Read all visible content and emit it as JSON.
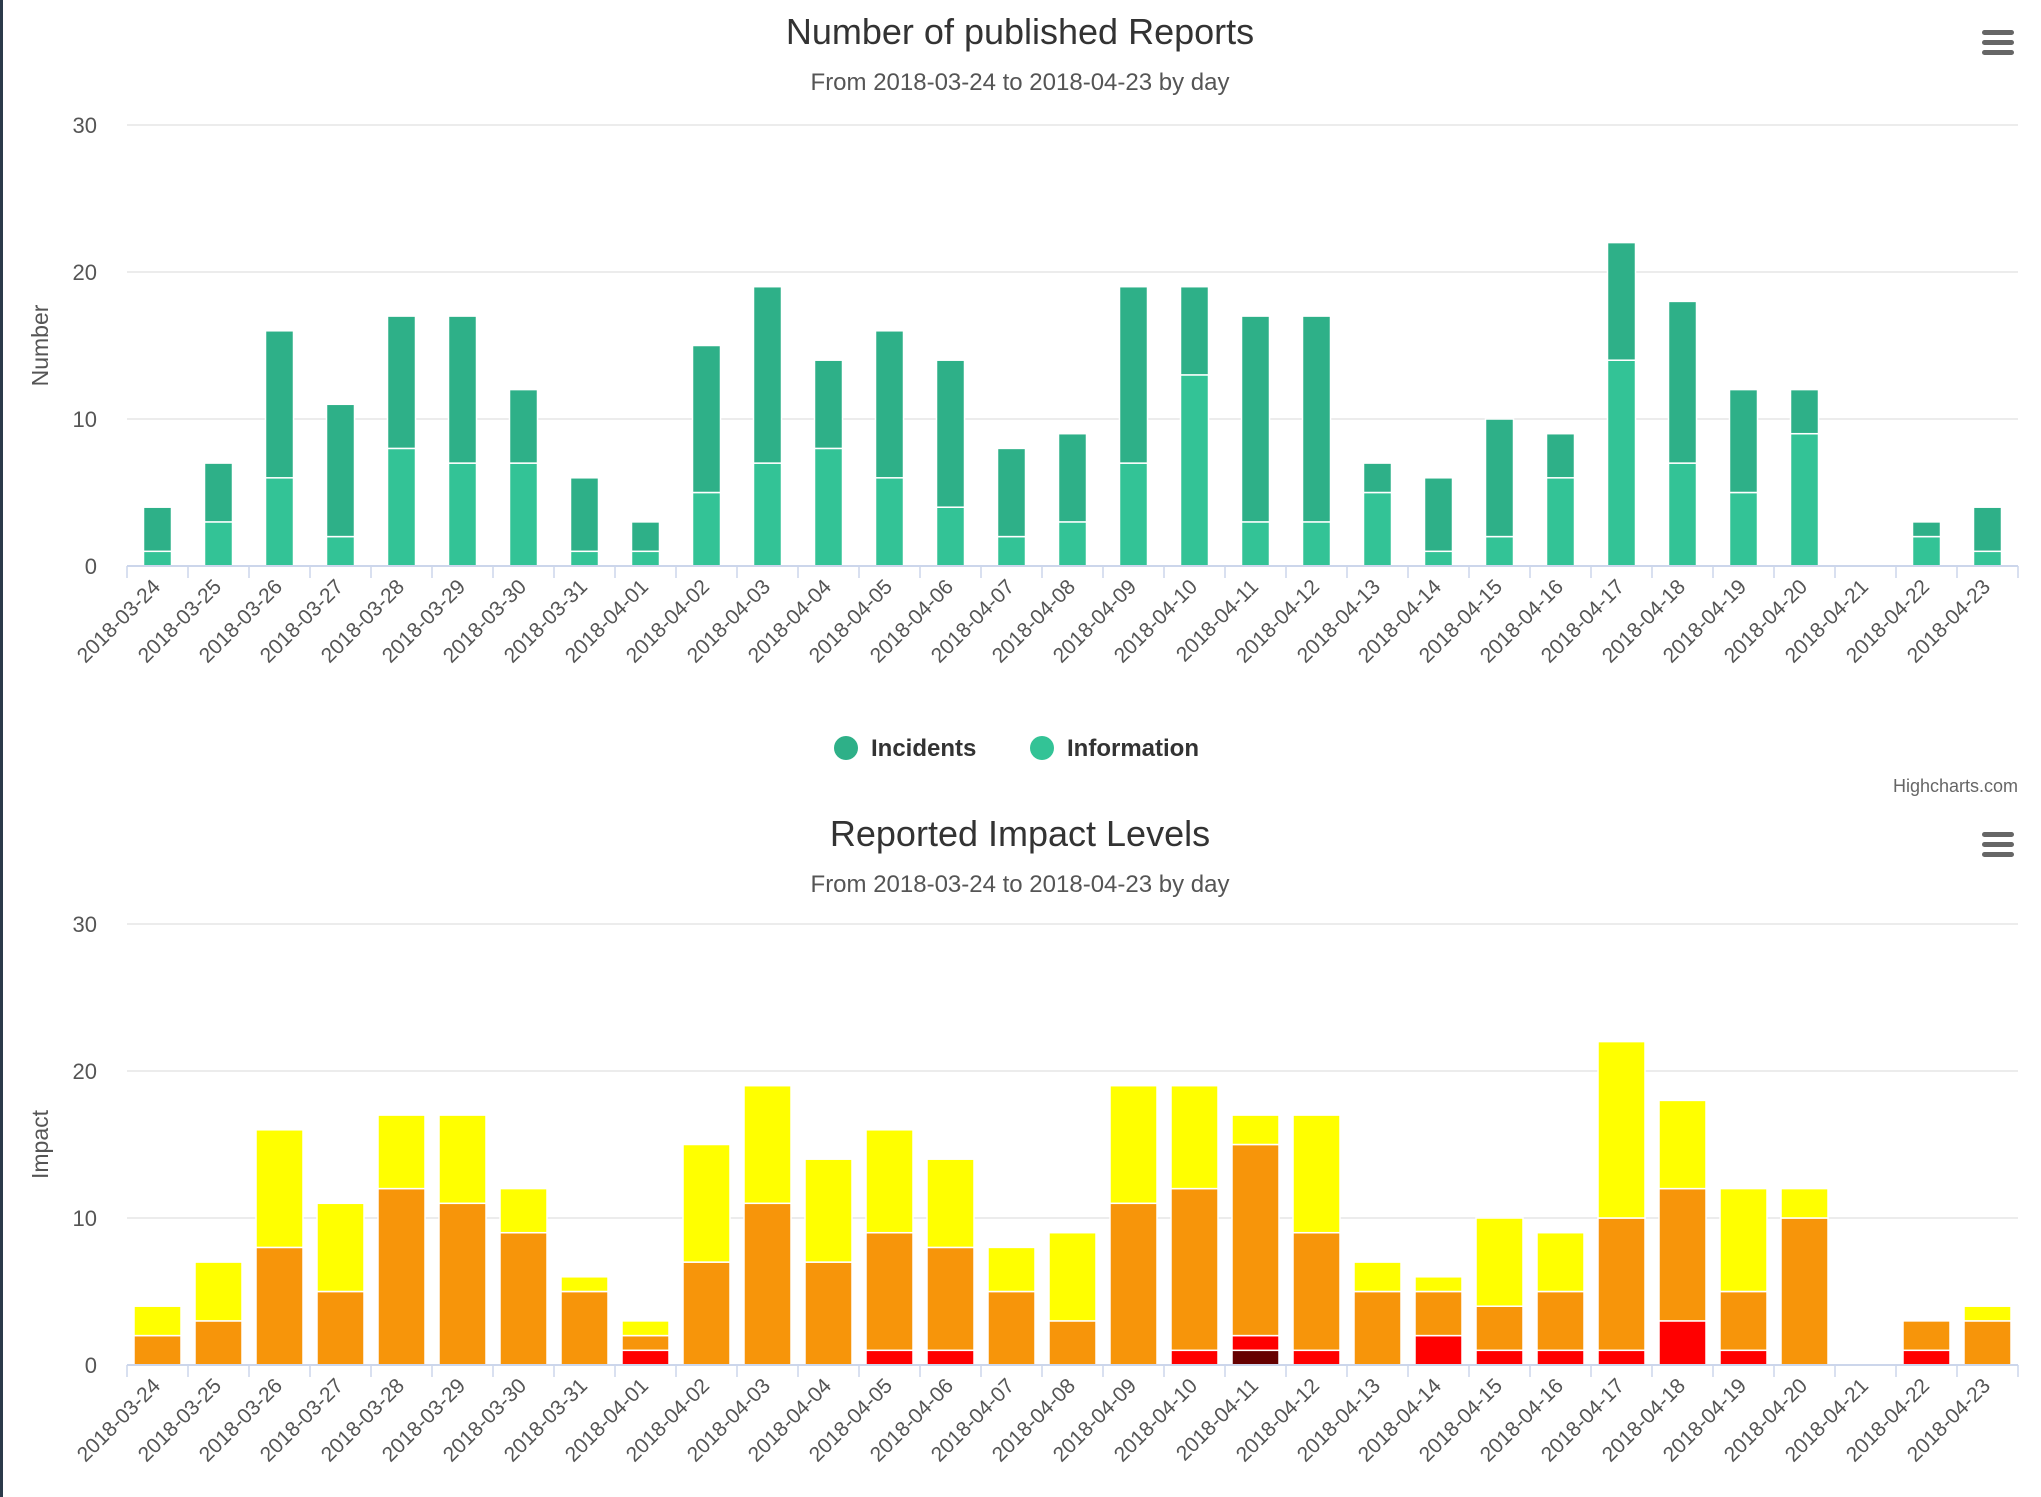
{
  "credits": "Highcharts.com",
  "chart_data": [
    {
      "type": "bar",
      "stacked": true,
      "title": "Number of published Reports",
      "subtitle": "From 2018-03-24 to 2018-04-23 by day",
      "ylabel": "Number",
      "ylim": [
        0,
        30
      ],
      "yticks": [
        0,
        10,
        20,
        30
      ],
      "grid": true,
      "legend_position": "bottom-center",
      "categories": [
        "2018-03-24",
        "2018-03-25",
        "2018-03-26",
        "2018-03-27",
        "2018-03-28",
        "2018-03-29",
        "2018-03-30",
        "2018-03-31",
        "2018-04-01",
        "2018-04-02",
        "2018-04-03",
        "2018-04-04",
        "2018-04-05",
        "2018-04-06",
        "2018-04-07",
        "2018-04-08",
        "2018-04-09",
        "2018-04-10",
        "2018-04-11",
        "2018-04-12",
        "2018-04-13",
        "2018-04-14",
        "2018-04-15",
        "2018-04-16",
        "2018-04-17",
        "2018-04-18",
        "2018-04-19",
        "2018-04-20",
        "2018-04-21",
        "2018-04-22",
        "2018-04-23"
      ],
      "series": [
        {
          "name": "Information",
          "color": "#33c396",
          "values": [
            1,
            3,
            6,
            2,
            8,
            7,
            7,
            1,
            1,
            5,
            7,
            8,
            6,
            4,
            2,
            3,
            7,
            13,
            3,
            3,
            5,
            1,
            2,
            6,
            14,
            7,
            5,
            9,
            0,
            2,
            1
          ]
        },
        {
          "name": "Incidents",
          "color": "#2eb088",
          "values": [
            3,
            4,
            10,
            9,
            9,
            10,
            5,
            5,
            2,
            10,
            12,
            6,
            10,
            10,
            6,
            6,
            12,
            6,
            14,
            14,
            2,
            5,
            8,
            3,
            8,
            11,
            7,
            3,
            0,
            1,
            3
          ]
        }
      ]
    },
    {
      "type": "bar",
      "stacked": true,
      "title": "Reported Impact Levels",
      "subtitle": "From 2018-03-24 to 2018-04-23 by day",
      "ylabel": "Impact",
      "ylim": [
        0,
        30
      ],
      "yticks": [
        0,
        10,
        20,
        30
      ],
      "grid": true,
      "categories": [
        "2018-03-24",
        "2018-03-25",
        "2018-03-26",
        "2018-03-27",
        "2018-03-28",
        "2018-03-29",
        "2018-03-30",
        "2018-03-31",
        "2018-04-01",
        "2018-04-02",
        "2018-04-03",
        "2018-04-04",
        "2018-04-05",
        "2018-04-06",
        "2018-04-07",
        "2018-04-08",
        "2018-04-09",
        "2018-04-10",
        "2018-04-11",
        "2018-04-12",
        "2018-04-13",
        "2018-04-14",
        "2018-04-15",
        "2018-04-16",
        "2018-04-17",
        "2018-04-18",
        "2018-04-19",
        "2018-04-20",
        "2018-04-21",
        "2018-04-22",
        "2018-04-23"
      ],
      "series": [
        {
          "color": "#660000",
          "values": [
            0,
            0,
            0,
            0,
            0,
            0,
            0,
            0,
            0,
            0,
            0,
            0,
            0,
            0,
            0,
            0,
            0,
            0,
            1,
            0,
            0,
            0,
            0,
            0,
            0,
            0,
            0,
            0,
            0,
            0,
            0
          ]
        },
        {
          "color": "#ff0000",
          "values": [
            0,
            0,
            0,
            0,
            0,
            0,
            0,
            0,
            1,
            0,
            0,
            0,
            1,
            1,
            0,
            0,
            0,
            1,
            1,
            1,
            0,
            2,
            1,
            1,
            1,
            3,
            1,
            0,
            0,
            1,
            0
          ]
        },
        {
          "color": "#f7950a",
          "values": [
            2,
            3,
            8,
            5,
            12,
            11,
            9,
            5,
            1,
            7,
            11,
            7,
            8,
            7,
            5,
            3,
            11,
            11,
            13,
            8,
            5,
            3,
            3,
            4,
            9,
            9,
            4,
            10,
            0,
            2,
            3
          ]
        },
        {
          "color": "#ffff00",
          "values": [
            2,
            4,
            8,
            6,
            5,
            6,
            3,
            1,
            1,
            8,
            8,
            7,
            7,
            6,
            3,
            6,
            8,
            7,
            2,
            8,
            2,
            1,
            6,
            4,
            12,
            6,
            7,
            2,
            0,
            0,
            1
          ]
        }
      ]
    }
  ]
}
